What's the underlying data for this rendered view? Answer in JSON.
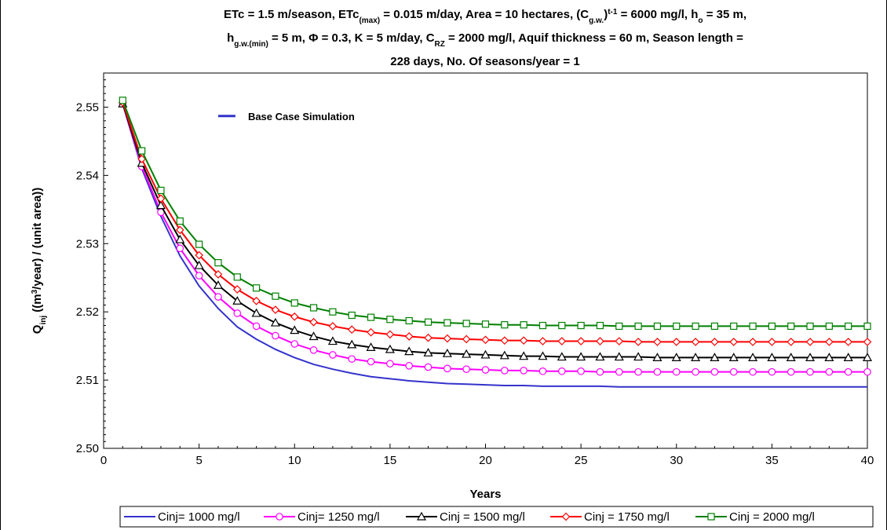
{
  "chart_data": {
    "type": "line",
    "title_lines": [
      [
        {
          "t": "ETc = 1.5 m/season, ETc"
        },
        {
          "t": "(max)",
          "sub": true
        },
        {
          "t": " = 0.015 m/day, Area = 10 hectares, (C"
        },
        {
          "t": "g.w.",
          "sub": true
        },
        {
          "t": ")"
        },
        {
          "t": "t-1",
          "sup": true
        },
        {
          "t": " = 6000 mg/l, h"
        },
        {
          "t": "o",
          "sub": true
        },
        {
          "t": " = 35 m,"
        }
      ],
      [
        {
          "t": "h"
        },
        {
          "t": "g.w.(min)",
          "sub": true
        },
        {
          "t": " = 5 m, Φ = 0.3, K = 5 m/day, C"
        },
        {
          "t": "RZ",
          "sub": true
        },
        {
          "t": " = 2000 mg/l, Aquif thickness = 60 m, Season length ="
        }
      ],
      [
        {
          "t": "228 days, No. Of seasons/year = 1"
        }
      ]
    ],
    "xlabel": "Years",
    "ylabel_parts": [
      {
        "t": "Q"
      },
      {
        "t": "inj",
        "sub": true
      },
      {
        "t": " ((m"
      },
      {
        "t": "3",
        "sup": true
      },
      {
        "t": "/year) / (unit area))"
      }
    ],
    "xlim": [
      0,
      40
    ],
    "ylim": [
      2.5,
      2.555
    ],
    "xticks": [
      0,
      5,
      10,
      15,
      20,
      25,
      30,
      35,
      40
    ],
    "xtick_labels": [
      "0",
      "5",
      "10",
      "15",
      "20",
      "25",
      "30",
      "35",
      "40"
    ],
    "yticks": [
      2.5,
      2.51,
      2.52,
      2.53,
      2.54,
      2.55
    ],
    "ytick_labels": [
      "2.50",
      "2.51",
      "2.52",
      "2.53",
      "2.54",
      "2.55"
    ],
    "grid": false,
    "legend_position": "bottom",
    "annotation": {
      "text": "Base Case Simulation",
      "color": "#3333cc",
      "x": 6.0,
      "y": 2.5487
    },
    "series": [
      {
        "name": "Cinj= 1000 mg/l",
        "color": "#3333cc",
        "marker": "none",
        "x": [
          1,
          2,
          3,
          4,
          5,
          6,
          7,
          8,
          9,
          10,
          11,
          12,
          13,
          14,
          15,
          16,
          17,
          18,
          19,
          20,
          21,
          22,
          23,
          24,
          25,
          26,
          27,
          28,
          29,
          30,
          31,
          32,
          33,
          34,
          35,
          36,
          37,
          38,
          39,
          40
        ],
        "y": [
          2.5505,
          2.541,
          2.534,
          2.5282,
          2.5238,
          2.5205,
          2.5178,
          2.516,
          2.5145,
          2.5133,
          2.5123,
          2.5116,
          2.511,
          2.5105,
          2.5102,
          2.5099,
          2.5097,
          2.5095,
          2.5094,
          2.5093,
          2.5092,
          2.5092,
          2.5091,
          2.5091,
          2.5091,
          2.5091,
          2.509,
          2.509,
          2.509,
          2.509,
          2.509,
          2.509,
          2.509,
          2.509,
          2.509,
          2.509,
          2.509,
          2.509,
          2.509,
          2.509
        ]
      },
      {
        "name": "Cinj= 1250 mg/l",
        "color": "#ff00ff",
        "marker": "circle",
        "x": [
          1,
          2,
          3,
          4,
          5,
          6,
          7,
          8,
          9,
          10,
          11,
          12,
          13,
          14,
          15,
          16,
          17,
          18,
          19,
          20,
          21,
          22,
          23,
          24,
          25,
          26,
          27,
          28,
          29,
          30,
          31,
          32,
          33,
          34,
          35,
          36,
          37,
          38,
          39,
          40
        ],
        "y": [
          2.5505,
          2.5413,
          2.5346,
          2.5293,
          2.5253,
          2.5222,
          2.5198,
          2.5179,
          2.5165,
          2.5153,
          2.5144,
          2.5137,
          2.5131,
          2.5127,
          2.5124,
          2.5121,
          2.5119,
          2.5117,
          2.5116,
          2.5115,
          2.5114,
          2.5114,
          2.5113,
          2.5113,
          2.5113,
          2.5112,
          2.5112,
          2.5112,
          2.5112,
          2.5112,
          2.5112,
          2.5112,
          2.5112,
          2.5112,
          2.5112,
          2.5112,
          2.5112,
          2.5112,
          2.5112,
          2.5112
        ]
      },
      {
        "name": "Cinj = 1500 mg/l",
        "color": "#000000",
        "marker": "triangle",
        "x": [
          1,
          2,
          3,
          4,
          5,
          6,
          7,
          8,
          9,
          10,
          11,
          12,
          13,
          14,
          15,
          16,
          17,
          18,
          19,
          20,
          21,
          22,
          23,
          24,
          25,
          26,
          27,
          28,
          29,
          30,
          31,
          32,
          33,
          34,
          35,
          36,
          37,
          38,
          39,
          40
        ],
        "y": [
          2.5505,
          2.5418,
          2.5356,
          2.5306,
          2.5268,
          2.5239,
          2.5216,
          2.5198,
          2.5184,
          2.5173,
          2.5164,
          2.5157,
          2.5152,
          2.5148,
          2.5145,
          2.5142,
          2.514,
          2.5139,
          2.5138,
          2.5137,
          2.5136,
          2.5135,
          2.5135,
          2.5134,
          2.5134,
          2.5134,
          2.5134,
          2.5134,
          2.5133,
          2.5133,
          2.5133,
          2.5133,
          2.5133,
          2.5133,
          2.5133,
          2.5133,
          2.5133,
          2.5133,
          2.5133,
          2.5133
        ]
      },
      {
        "name": "Cinj = 1750 mg/l",
        "color": "#ff0000",
        "marker": "diamond",
        "x": [
          1,
          2,
          3,
          4,
          5,
          6,
          7,
          8,
          9,
          10,
          11,
          12,
          13,
          14,
          15,
          16,
          17,
          18,
          19,
          20,
          21,
          22,
          23,
          24,
          25,
          26,
          27,
          28,
          29,
          30,
          31,
          32,
          33,
          34,
          35,
          36,
          37,
          38,
          39,
          40
        ],
        "y": [
          2.5507,
          2.5424,
          2.5366,
          2.532,
          2.5283,
          2.5255,
          2.5233,
          2.5216,
          2.5203,
          2.5193,
          2.5185,
          2.5179,
          2.5174,
          2.517,
          2.5167,
          2.5164,
          2.5162,
          2.5161,
          2.516,
          2.5159,
          2.5158,
          2.5158,
          2.5157,
          2.5157,
          2.5157,
          2.5157,
          2.5157,
          2.5156,
          2.5156,
          2.5156,
          2.5156,
          2.5156,
          2.5156,
          2.5156,
          2.5156,
          2.5156,
          2.5156,
          2.5156,
          2.5156,
          2.5156
        ]
      },
      {
        "name": "Cinj = 2000 mg/l",
        "color": "#008000",
        "marker": "square",
        "x": [
          1,
          2,
          3,
          4,
          5,
          6,
          7,
          8,
          9,
          10,
          11,
          12,
          13,
          14,
          15,
          16,
          17,
          18,
          19,
          20,
          21,
          22,
          23,
          24,
          25,
          26,
          27,
          28,
          29,
          30,
          31,
          32,
          33,
          34,
          35,
          36,
          37,
          38,
          39,
          40
        ],
        "y": [
          2.551,
          2.5436,
          2.5378,
          2.5333,
          2.5299,
          2.5272,
          2.5251,
          2.5235,
          2.5223,
          2.5213,
          2.5206,
          2.52,
          2.5195,
          2.5192,
          2.5189,
          2.5187,
          2.5185,
          2.5184,
          2.5183,
          2.5182,
          2.5181,
          2.5181,
          2.518,
          2.518,
          2.518,
          2.518,
          2.5179,
          2.5179,
          2.5179,
          2.5179,
          2.5179,
          2.5179,
          2.5179,
          2.5179,
          2.5179,
          2.5179,
          2.5179,
          2.5179,
          2.5179,
          2.5179
        ]
      }
    ]
  }
}
